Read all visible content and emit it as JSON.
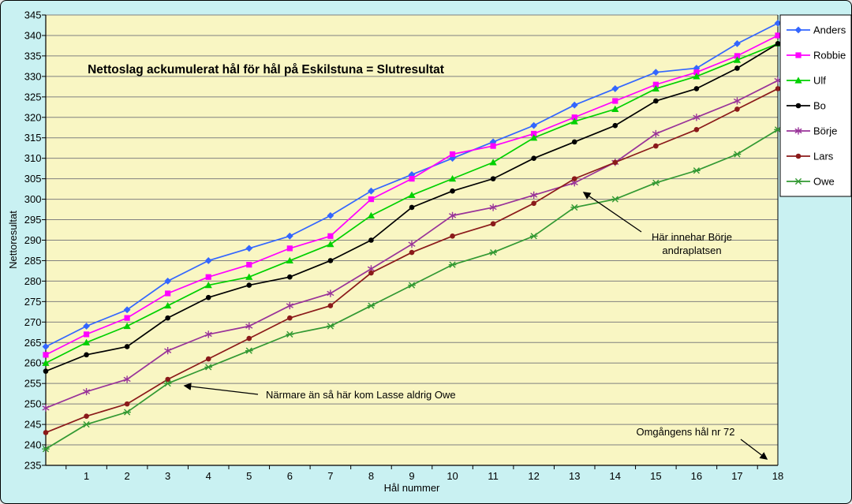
{
  "colors": {
    "frame_background": "#C9F1F2",
    "plot_background": "#F9F6C3",
    "gridline": "#808080",
    "axis": "#000000",
    "legend_background": "#FFFFFF",
    "legend_border": "#000000"
  },
  "chart_data": {
    "type": "line",
    "title": "Nettoslag ackumulerat hål för hål på Eskilstuna = Slutresultat",
    "xlabel": "Hål nummer",
    "ylabel": "Nettoresultat",
    "ylim": [
      235,
      345
    ],
    "ytick_step": 5,
    "grid": true,
    "legend_position": "right",
    "x": [
      0,
      1,
      2,
      3,
      4,
      5,
      6,
      7,
      8,
      9,
      10,
      11,
      12,
      13,
      14,
      15,
      16,
      17,
      18
    ],
    "x_tick_labels": [
      "1",
      "2",
      "3",
      "4",
      "5",
      "6",
      "7",
      "8",
      "9",
      "10",
      "11",
      "12",
      "13",
      "14",
      "15",
      "16",
      "17",
      "18"
    ],
    "y_tick_labels": [
      "345",
      "340",
      "335",
      "330",
      "325",
      "320",
      "315",
      "310",
      "305",
      "300",
      "295",
      "290",
      "285",
      "280",
      "275",
      "270",
      "265",
      "260",
      "255",
      "250",
      "245",
      "240",
      "235"
    ],
    "series": [
      {
        "name": "Anders",
        "color": "#3366FF",
        "marker": "diamond",
        "values": [
          264,
          269,
          273,
          280,
          285,
          288,
          291,
          296,
          302,
          306,
          310,
          314,
          318,
          323,
          327,
          331,
          332,
          338,
          343
        ]
      },
      {
        "name": "Robbie",
        "color": "#FF00FF",
        "marker": "square",
        "values": [
          262,
          267,
          271,
          277,
          281,
          284,
          288,
          291,
          300,
          305,
          311,
          313,
          316,
          320,
          324,
          328,
          331,
          335,
          340
        ]
      },
      {
        "name": "Ulf",
        "color": "#00D000",
        "marker": "triangle",
        "values": [
          260,
          265,
          269,
          274,
          279,
          281,
          285,
          289,
          296,
          301,
          305,
          309,
          315,
          319,
          322,
          327,
          330,
          334,
          338
        ]
      },
      {
        "name": "Bo",
        "color": "#000000",
        "marker": "circle",
        "values": [
          258,
          262,
          264,
          271,
          276,
          279,
          281,
          285,
          290,
          298,
          302,
          305,
          310,
          314,
          318,
          324,
          327,
          332,
          338
        ]
      },
      {
        "name": "Börje",
        "color": "#993399",
        "marker": "star",
        "values": [
          249,
          253,
          256,
          263,
          267,
          269,
          274,
          277,
          283,
          289,
          296,
          298,
          301,
          304,
          309,
          316,
          320,
          324,
          329
        ]
      },
      {
        "name": "Lars",
        "color": "#8B1A1A",
        "marker": "circle",
        "values": [
          243,
          247,
          250,
          256,
          261,
          266,
          271,
          274,
          282,
          287,
          291,
          294,
          299,
          305,
          309,
          313,
          317,
          322,
          327
        ]
      },
      {
        "name": "Owe",
        "color": "#339933",
        "marker": "xstar",
        "values": [
          239,
          245,
          248,
          255,
          259,
          263,
          267,
          269,
          274,
          279,
          284,
          287,
          291,
          298,
          300,
          304,
          307,
          311,
          317
        ]
      }
    ],
    "annotations": [
      {
        "text": "Närmare än så här kom Lasse aldrig Owe"
      },
      {
        "line1": "Här innehar Börje",
        "line2": "andraplatsen"
      },
      {
        "text": "Omgångens hål nr 72"
      }
    ]
  }
}
